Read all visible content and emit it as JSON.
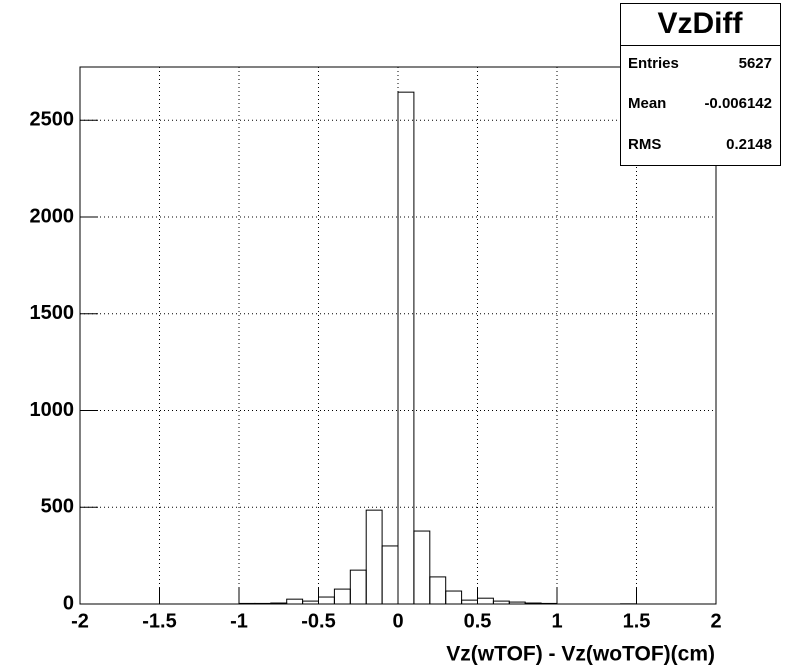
{
  "chart_data": {
    "type": "histogram",
    "bins": [
      -2.0,
      -1.9,
      -1.8,
      -1.7,
      -1.6,
      -1.5,
      -1.4,
      -1.3,
      -1.2,
      -1.1,
      -1.0,
      -0.9,
      -0.8,
      -0.7,
      -0.6,
      -0.5,
      -0.4,
      -0.3,
      -0.2,
      -0.1,
      0.0,
      0.1,
      0.2,
      0.3,
      0.4,
      0.5,
      0.6,
      0.7,
      0.8,
      0.9,
      1.0,
      1.1,
      1.2,
      1.3,
      1.4,
      1.5,
      1.6,
      1.7,
      1.8,
      1.9,
      2.0
    ],
    "values": [
      0,
      0,
      0,
      0,
      0,
      0,
      0,
      0,
      0,
      0,
      3,
      3,
      5,
      25,
      15,
      36,
      77,
      175,
      485,
      300,
      2645,
      377,
      140,
      67,
      20,
      30,
      15,
      10,
      5,
      3,
      0,
      0,
      0,
      0,
      1,
      0,
      0,
      0,
      0,
      0
    ],
    "color": "#000000",
    "xlabel": "Vz(wTOF) - Vz(woTOF)(cm)",
    "xlim": [
      -2,
      2
    ],
    "xticks": [
      -2,
      -1.5,
      -1,
      -0.5,
      0,
      0.5,
      1,
      1.5,
      2
    ],
    "ylim": [
      0,
      2775
    ],
    "yticks": [
      0,
      500,
      1000,
      1500,
      2000,
      2500
    ],
    "grid": true,
    "stats": {
      "title": "VzDiff",
      "rows": [
        [
          "Entries",
          5627
        ],
        [
          "Mean",
          -0.006142
        ],
        [
          "RMS",
          0.2148
        ]
      ]
    }
  }
}
